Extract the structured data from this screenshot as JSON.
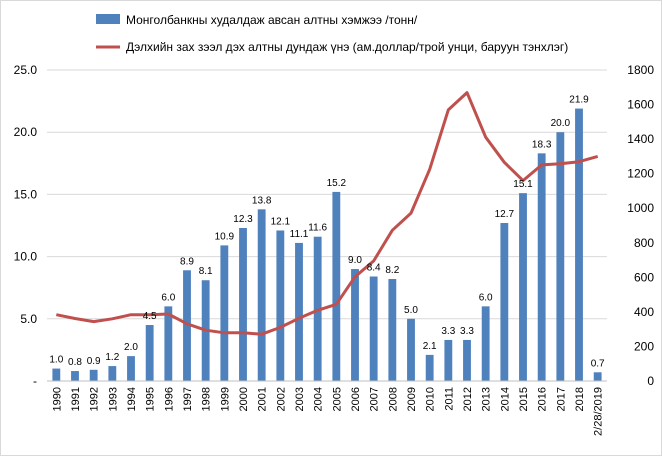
{
  "legend": {
    "bar_label": "Монголбанкны худалдаж авсан алтны хэмжээ /тонн/",
    "line_label": "Дэлхийн зах зээл дэх алтны дундаж үнэ (ам.доллар/трой унци, баруун тэнхлэг)"
  },
  "colors": {
    "bar": "#4f81bd",
    "line": "#c0504d",
    "grid": "#d9d9d9",
    "axis": "#bfbfbf"
  },
  "chart_data": {
    "type": "bar",
    "categories": [
      "1990",
      "1991",
      "1992",
      "1993",
      "1994",
      "1995",
      "1996",
      "1997",
      "1998",
      "1999",
      "2000",
      "2001",
      "2002",
      "2003",
      "2004",
      "2005",
      "2006",
      "2007",
      "2008",
      "2009",
      "2010",
      "2011",
      "2012",
      "2013",
      "2014",
      "2015",
      "2016",
      "2017",
      "2018",
      "2/28/2019"
    ],
    "series": [
      {
        "name": "Монголбанкны худалдаж авсан алтны хэмжээ /тонн/",
        "type": "bar",
        "axis": "left",
        "values": [
          1.0,
          0.8,
          0.9,
          1.2,
          2.0,
          4.5,
          6.0,
          8.9,
          8.1,
          10.9,
          12.3,
          13.8,
          12.1,
          11.1,
          11.6,
          15.2,
          9.0,
          8.4,
          8.2,
          5.0,
          2.1,
          3.3,
          3.3,
          6.0,
          12.7,
          15.1,
          18.3,
          20.0,
          21.9,
          0.7
        ],
        "data_labels": [
          "1.0",
          "0.8",
          "0.9",
          "1.2",
          "2.0",
          "4.5",
          "6.0",
          "8.9",
          "8.1",
          "10.9",
          "12.3",
          "13.8",
          "12.1",
          "11.1",
          "11.6",
          "15.2",
          "9.0",
          "8.4",
          "8.2",
          "5.0",
          "2.1",
          "3.3",
          "3.3",
          "6.0",
          "12.7",
          "15.1",
          "18.3",
          "20.0",
          "21.9",
          "0.7"
        ]
      },
      {
        "name": "Дэлхийн зах зээл дэх алтны дундаж үнэ (ам.доллар/трой унци, баруун тэнхлэг)",
        "type": "line",
        "axis": "right",
        "values": [
          384,
          362,
          344,
          360,
          384,
          384,
          388,
          331,
          294,
          279,
          279,
          271,
          310,
          363,
          409,
          444,
          603,
          695,
          872,
          972,
          1225,
          1569,
          1669,
          1411,
          1266,
          1160,
          1251,
          1257,
          1269,
          1300
        ]
      }
    ],
    "y_left": {
      "min": 0,
      "max": 25,
      "ticks": [
        "-",
        "5.0",
        "10.0",
        "15.0",
        "20.0",
        "25.0"
      ]
    },
    "y_right": {
      "min": 0,
      "max": 1800,
      "ticks": [
        "0",
        "200",
        "400",
        "600",
        "800",
        "1000",
        "1200",
        "1400",
        "1600",
        "1800"
      ]
    },
    "grid": true,
    "legend_position": "top"
  }
}
